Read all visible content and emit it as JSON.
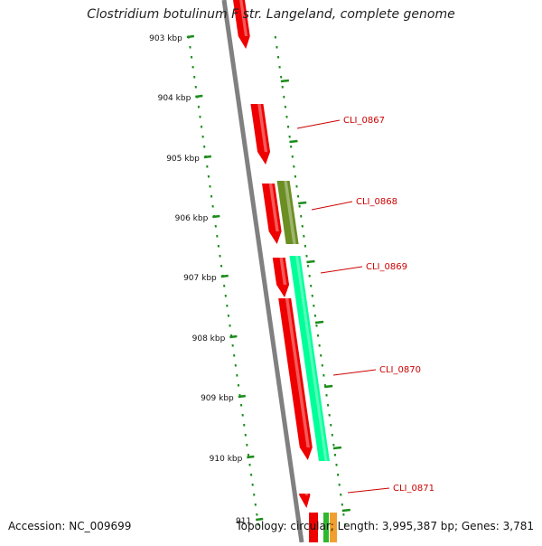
{
  "title": "Clostridium botulinum F str. Langeland, complete genome",
  "footer": {
    "accession": "Accession: NC_009699",
    "stats": "Topology: circular; Length: 3,995,387 bp; Genes: 3,781"
  },
  "ruler": {
    "ticks": [
      "903 kbp",
      "904 kbp",
      "905 kbp",
      "906 kbp",
      "907 kbp",
      "908 kbp",
      "909 kbp",
      "910 kbp",
      "911"
    ]
  },
  "genes": [
    {
      "label": "CLI_0867",
      "color": "#ee0000"
    },
    {
      "label": "CLI_0868",
      "color": "#6b8e23"
    },
    {
      "label": "CLI_0869",
      "color": "#00ff99"
    },
    {
      "label": "CLI_0870",
      "color": "#ee0000"
    },
    {
      "label": "CLI_0871",
      "color": "#ee0000"
    }
  ],
  "colors": {
    "backbone": "#808080",
    "tick": "#1a8c1a",
    "label": "#cc0000",
    "feature_forward": "#ee0000",
    "feature_olive": "#6b8e23",
    "feature_aqua": "#00ff99"
  }
}
